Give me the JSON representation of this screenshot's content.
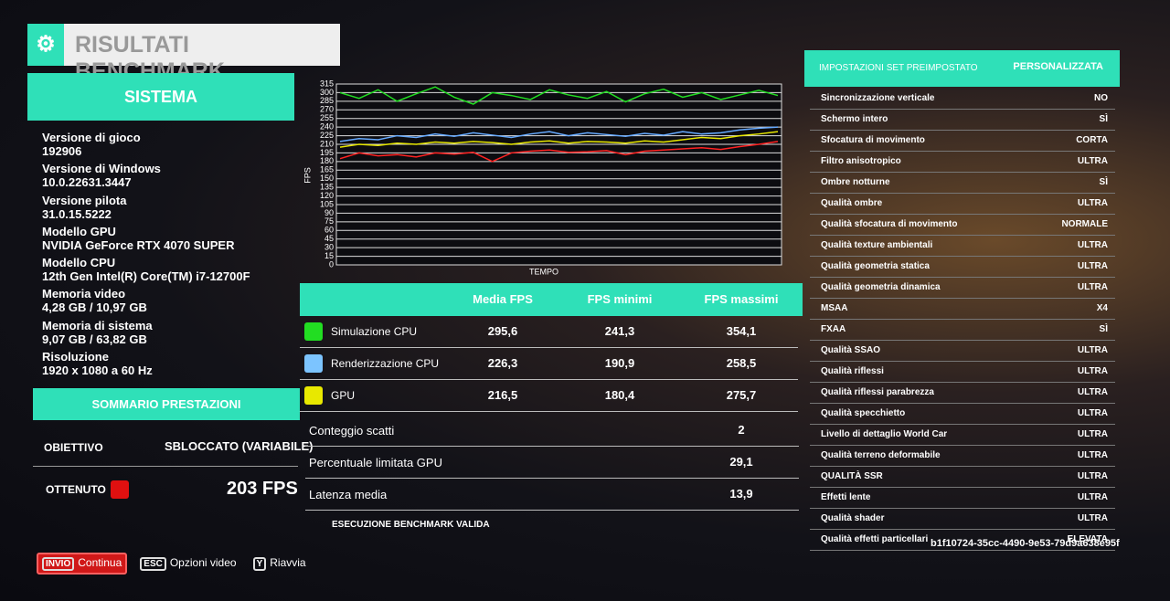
{
  "header": {
    "title": "RISULTATI BENCHMARK"
  },
  "system": {
    "title": "SISTEMA",
    "items": [
      {
        "label": "Versione di gioco",
        "value": "192906"
      },
      {
        "label": "Versione di Windows",
        "value": "10.0.22631.3447"
      },
      {
        "label": "Versione pilota",
        "value": "31.0.15.5222"
      },
      {
        "label": "Modello GPU",
        "value": "NVIDIA GeForce RTX 4070 SUPER"
      },
      {
        "label": "Modello CPU",
        "value": "12th Gen Intel(R) Core(TM) i7-12700F"
      },
      {
        "label": "Memoria video",
        "value": "4,28 GB / 10,97 GB"
      },
      {
        "label": "Memoria di sistema",
        "value": "9,07 GB / 63,82 GB"
      },
      {
        "label": "Risoluzione",
        "value": "1920 x 1080 a 60 Hz"
      }
    ]
  },
  "summary": {
    "title": "SOMMARIO PRESTAZIONI",
    "target_label": "OBIETTIVO",
    "target_value": "SBLOCCATO (VARIABILE)",
    "achieved_label": "OTTENUTO",
    "achieved_color": "#e01010",
    "achieved_value": "203 FPS"
  },
  "chart_data": {
    "type": "line",
    "ylabel": "FPS",
    "xlabel": "TEMPO",
    "grid": true,
    "ylim": [
      0,
      315
    ],
    "yticks": [
      0,
      15,
      30,
      45,
      60,
      75,
      90,
      105,
      120,
      135,
      150,
      165,
      180,
      195,
      210,
      225,
      240,
      255,
      270,
      285,
      300,
      315
    ],
    "series": [
      {
        "color": "#22dd22",
        "values": [
          300,
          290,
          305,
          285,
          298,
          310,
          292,
          280,
          300,
          295,
          288,
          305,
          296,
          290,
          302,
          284,
          298,
          306,
          292,
          300,
          288,
          296,
          304,
          295
        ]
      },
      {
        "color": "#66aaff",
        "values": [
          215,
          220,
          218,
          225,
          222,
          228,
          224,
          230,
          226,
          222,
          228,
          232,
          225,
          230,
          227,
          224,
          229,
          226,
          232,
          228,
          230,
          235,
          238,
          240
        ]
      },
      {
        "color": "#e8e800",
        "values": [
          205,
          210,
          208,
          212,
          210,
          214,
          212,
          215,
          213,
          210,
          214,
          216,
          212,
          215,
          214,
          212,
          216,
          214,
          218,
          222,
          220,
          225,
          228,
          232
        ]
      },
      {
        "color": "#ff2222",
        "values": [
          185,
          195,
          190,
          192,
          188,
          195,
          193,
          196,
          180,
          195,
          198,
          200,
          196,
          197,
          199,
          192,
          198,
          200,
          202,
          204,
          201,
          206,
          210,
          215
        ]
      }
    ]
  },
  "table": {
    "columns": [
      "Media FPS",
      "FPS minimi",
      "FPS massimi"
    ],
    "rows": [
      {
        "color": "#22dd22",
        "name": "Simulazione CPU",
        "cells": [
          "295,6",
          "241,3",
          "354,1"
        ]
      },
      {
        "color": "#7cc4ff",
        "name": "Renderizzazione CPU",
        "cells": [
          "226,3",
          "190,9",
          "258,5"
        ]
      },
      {
        "color": "#e8e800",
        "name": "GPU",
        "cells": [
          "216,5",
          "180,4",
          "275,7"
        ]
      }
    ],
    "stats": [
      {
        "label": "Conteggio scatti",
        "value": "2"
      },
      {
        "label": "Percentuale limitata GPU",
        "value": "29,1"
      },
      {
        "label": "Latenza media",
        "value": "13,9"
      }
    ],
    "status": "ESECUZIONE BENCHMARK VALIDA"
  },
  "settings": {
    "header_label": "IMPOSTAZIONI SET PREIMPOSTATO",
    "header_value": "PERSONALIZZATA",
    "items": [
      {
        "label": "Sincronizzazione verticale",
        "value": "NO"
      },
      {
        "label": "Schermo intero",
        "value": "SÌ"
      },
      {
        "label": "Sfocatura di movimento",
        "value": "CORTA"
      },
      {
        "label": "Filtro anisotropico",
        "value": "ULTRA"
      },
      {
        "label": "Ombre notturne",
        "value": "SÌ"
      },
      {
        "label": "Qualità ombre",
        "value": "ULTRA"
      },
      {
        "label": "Qualità sfocatura di movimento",
        "value": "NORMALE"
      },
      {
        "label": "Qualità texture ambientali",
        "value": "ULTRA"
      },
      {
        "label": "Qualità geometria statica",
        "value": "ULTRA"
      },
      {
        "label": "Qualità geometria dinamica",
        "value": "ULTRA"
      },
      {
        "label": "MSAA",
        "value": "X4"
      },
      {
        "label": "FXAA",
        "value": "SÌ"
      },
      {
        "label": "Qualità SSAO",
        "value": "ULTRA"
      },
      {
        "label": "Qualità riflessi",
        "value": "ULTRA"
      },
      {
        "label": "Qualità riflessi parabrezza",
        "value": "ULTRA"
      },
      {
        "label": "Qualità specchietto",
        "value": "ULTRA"
      },
      {
        "label": "Livello di dettaglio World Car",
        "value": "ULTRA"
      },
      {
        "label": "Qualità terreno deformabile",
        "value": "ULTRA"
      },
      {
        "label": "QUALITÀ SSR",
        "value": "ULTRA"
      },
      {
        "label": "Effetti lente",
        "value": "ULTRA"
      },
      {
        "label": "Qualità shader",
        "value": "ULTRA"
      },
      {
        "label": "Qualità effetti particellari",
        "value": "ELEVATA"
      }
    ]
  },
  "run_id": "b1f10724-35cc-4490-9e53-79d9a638e95f",
  "footer": [
    {
      "key": "INVIO",
      "label": "Continua"
    },
    {
      "key": "ESC",
      "label": "Opzioni video"
    },
    {
      "key": "Y",
      "label": "Riavvia"
    }
  ]
}
